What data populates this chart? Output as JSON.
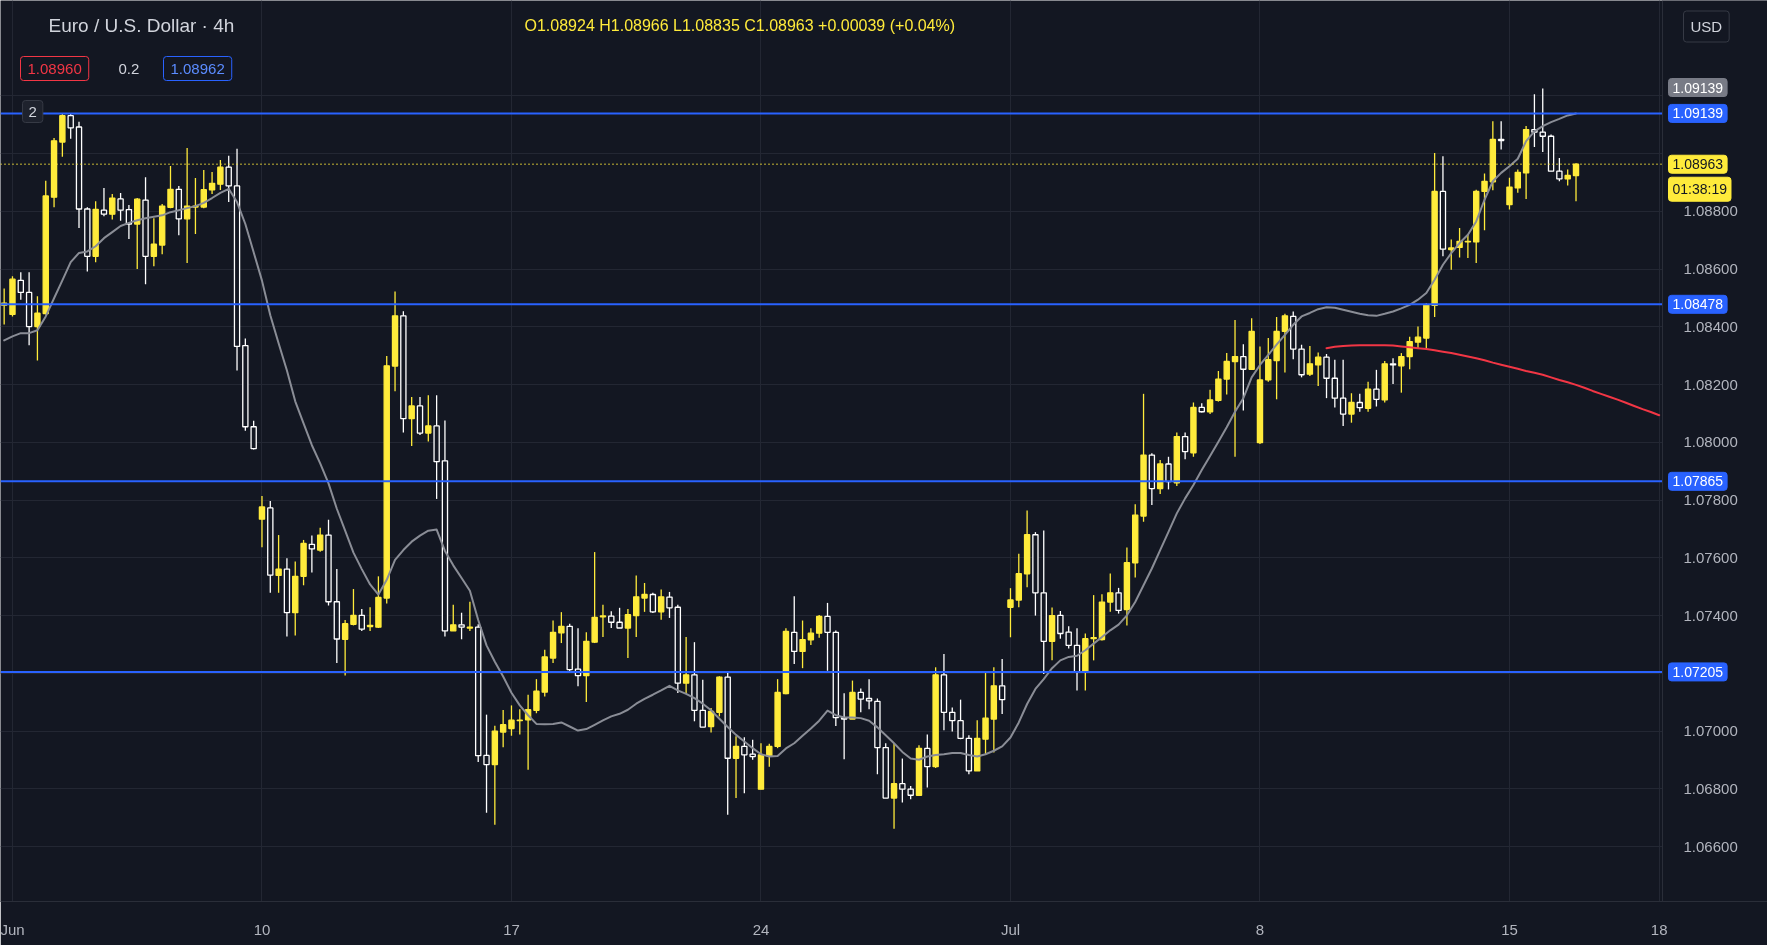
{
  "chart_data": {
    "type": "candlestick",
    "title": "Euro / U.S. Dollar · 4h",
    "subtitle": "O1.08924 H1.08966 L1.08835 C1.08963 +0.00039 (+0.04%)",
    "categories": [
      null,
      "Jun",
      null,
      null,
      null,
      null,
      null,
      null,
      null,
      null,
      null,
      null,
      null,
      null,
      null,
      null,
      null,
      null,
      null,
      null,
      null,
      null,
      null,
      null,
      null,
      null,
      null,
      null,
      null,
      null,
      null,
      "10",
      null,
      null,
      null,
      null,
      null,
      null,
      null,
      null,
      null,
      null,
      null,
      null,
      null,
      null,
      null,
      null,
      null,
      null,
      null,
      null,
      null,
      null,
      null,
      null,
      null,
      null,
      null,
      null,
      null,
      "17",
      null,
      null,
      null,
      null,
      null,
      null,
      null,
      null,
      null,
      null,
      null,
      null,
      null,
      null,
      null,
      null,
      null,
      null,
      null,
      null,
      null,
      null,
      null,
      null,
      null,
      null,
      null,
      null,
      null,
      "24",
      null,
      null,
      null,
      null,
      null,
      null,
      null,
      null,
      null,
      null,
      null,
      null,
      null,
      null,
      null,
      null,
      null,
      null,
      null,
      null,
      null,
      null,
      null,
      null,
      null,
      null,
      null,
      null,
      null,
      "Jul",
      null,
      null,
      null,
      null,
      null,
      null,
      null,
      null,
      null,
      null,
      null,
      null,
      null,
      null,
      null,
      null,
      null,
      null,
      null,
      null,
      null,
      null,
      null,
      null,
      null,
      null,
      null,
      null,
      null,
      "8",
      null,
      null,
      null,
      null,
      null,
      null,
      null,
      null,
      null,
      null,
      null,
      null,
      null,
      null,
      null,
      null,
      null,
      null,
      null,
      null,
      null,
      null,
      null,
      null,
      null,
      null,
      null,
      null,
      null,
      "15",
      null,
      null,
      null,
      null,
      null,
      null,
      null,
      null,
      null,
      null,
      null,
      null,
      null,
      null,
      null,
      null,
      null,
      "18"
    ],
    "ohlc": [
      [
        1.08475,
        1.08533,
        1.08408,
        1.08482
      ],
      [
        1.08443,
        1.08575,
        1.08436,
        1.08565
      ],
      [
        1.08561,
        1.08589,
        1.08494,
        1.08519
      ],
      [
        1.08519,
        1.08589,
        1.08336,
        1.08401
      ],
      [
        1.08401,
        1.08506,
        1.08283,
        1.08447
      ],
      [
        1.08446,
        1.08906,
        1.08443,
        1.08853
      ],
      [
        1.08849,
        1.09054,
        1.08814,
        1.09044
      ],
      [
        1.0904,
        1.09138,
        1.08989,
        1.09131
      ],
      [
        1.09131,
        1.09139,
        1.09051,
        1.09089
      ],
      [
        1.09092,
        1.0911,
        1.08742,
        1.08808
      ],
      [
        1.08808,
        1.08814,
        1.08592,
        1.08644
      ],
      [
        1.08644,
        1.08835,
        1.08624,
        1.08807
      ],
      [
        1.08804,
        1.08881,
        1.08783,
        1.0879
      ],
      [
        1.0879,
        1.0886,
        1.08772,
        1.08846
      ],
      [
        1.08843,
        1.08863,
        1.08767,
        1.08804
      ],
      [
        1.08806,
        1.08822,
        1.08704,
        1.08756
      ],
      [
        1.08756,
        1.08846,
        1.086,
        1.08842
      ],
      [
        1.08839,
        1.08918,
        1.08547,
        1.08644
      ],
      [
        1.08644,
        1.08776,
        1.0861,
        1.08686
      ],
      [
        1.08683,
        1.08825,
        1.08651,
        1.08818
      ],
      [
        1.08814,
        1.08957,
        1.08811,
        1.08876
      ],
      [
        1.08876,
        1.08888,
        1.08717,
        1.08774
      ],
      [
        1.08774,
        1.09019,
        1.08621,
        1.08818
      ],
      [
        1.08815,
        1.08915,
        1.08721,
        1.08818
      ],
      [
        1.08815,
        1.08943,
        1.08811,
        1.08875
      ],
      [
        1.08874,
        1.08936,
        1.0886,
        1.08897
      ],
      [
        1.08894,
        1.08978,
        1.08874,
        1.08953
      ],
      [
        1.08953,
        1.08992,
        1.08832,
        1.08888
      ],
      [
        1.08888,
        1.09017,
        1.08249,
        1.08332
      ],
      [
        1.08335,
        1.0836,
        1.0804,
        1.08054
      ],
      [
        1.08054,
        1.08075,
        1.07975,
        1.07978
      ],
      [
        1.07734,
        1.07814,
        1.07637,
        1.07776
      ],
      [
        1.07773,
        1.07797,
        1.07479,
        1.0754
      ],
      [
        1.07539,
        1.07679,
        1.07479,
        1.07561
      ],
      [
        1.07561,
        1.07599,
        1.07328,
        1.0741
      ],
      [
        1.0741,
        1.07587,
        1.07331,
        1.07536
      ],
      [
        1.07536,
        1.07662,
        1.07505,
        1.0765
      ],
      [
        1.07647,
        1.07677,
        1.07549,
        1.07631
      ],
      [
        1.07627,
        1.07704,
        1.07621,
        1.07679
      ],
      [
        1.07679,
        1.07732,
        1.07435,
        1.07448
      ],
      [
        1.07448,
        1.07561,
        1.07236,
        1.07319
      ],
      [
        1.07318,
        1.07385,
        1.07193,
        1.07372
      ],
      [
        1.0737,
        1.07492,
        1.07366,
        1.07401
      ],
      [
        1.07401,
        1.07423,
        1.07347,
        1.07353
      ],
      [
        1.07362,
        1.07429,
        1.07347,
        1.07366
      ],
      [
        1.0736,
        1.07536,
        1.07357,
        1.07463
      ],
      [
        1.07461,
        1.08299,
        1.07442,
        1.08265
      ],
      [
        1.08264,
        1.08522,
        1.08177,
        1.08438
      ],
      [
        1.08438,
        1.08454,
        1.08034,
        1.08082
      ],
      [
        1.08082,
        1.08157,
        1.07987,
        1.08126
      ],
      [
        1.08126,
        1.08157,
        1.08025,
        1.08032
      ],
      [
        1.08032,
        1.08163,
        1.08003,
        1.08057
      ],
      [
        1.08057,
        1.08163,
        1.07804,
        1.07933
      ],
      [
        1.07936,
        1.08076,
        1.07328,
        1.07347
      ],
      [
        1.07347,
        1.07438,
        1.07347,
        1.07368
      ],
      [
        1.07368,
        1.0741,
        1.07318,
        1.0736
      ],
      [
        1.07357,
        1.07448,
        1.07347,
        1.0736
      ],
      [
        1.0736,
        1.0737,
        1.06893,
        1.06915
      ],
      [
        1.06916,
        1.07057,
        1.06717,
        1.06884
      ],
      [
        1.06884,
        1.07019,
        1.06676,
        1.07
      ],
      [
        1.06997,
        1.07073,
        1.06944,
        1.07022
      ],
      [
        1.07009,
        1.07089,
        1.06984,
        1.07038
      ],
      [
        1.07036,
        1.07076,
        1.06988,
        1.07038
      ],
      [
        1.07039,
        1.07126,
        1.06866,
        1.07074
      ],
      [
        1.07072,
        1.0718,
        1.07062,
        1.07138
      ],
      [
        1.07135,
        1.07282,
        1.0712,
        1.07257
      ],
      [
        1.07253,
        1.07383,
        1.07236,
        1.07342
      ],
      [
        1.0734,
        1.07412,
        1.07305,
        1.07363
      ],
      [
        1.07363,
        1.07372,
        1.07207,
        1.07213
      ],
      [
        1.07215,
        1.07356,
        1.07155,
        1.07192
      ],
      [
        1.07192,
        1.07342,
        1.07101,
        1.07311
      ],
      [
        1.07308,
        1.0762,
        1.07305,
        1.07394
      ],
      [
        1.07396,
        1.07438,
        1.07326,
        1.07399
      ],
      [
        1.07398,
        1.07415,
        1.07357,
        1.07377
      ],
      [
        1.07377,
        1.07427,
        1.07357,
        1.07357
      ],
      [
        1.07357,
        1.07423,
        1.07253,
        1.07403
      ],
      [
        1.074,
        1.07539,
        1.07326,
        1.07465
      ],
      [
        1.07461,
        1.07513,
        1.07413,
        1.07473
      ],
      [
        1.07473,
        1.07479,
        1.07409,
        1.07413
      ],
      [
        1.07413,
        1.0749,
        1.07386,
        1.07465
      ],
      [
        1.07464,
        1.07482,
        1.07392,
        1.07427
      ],
      [
        1.07429,
        1.07438,
        1.07132,
        1.07166
      ],
      [
        1.07166,
        1.07326,
        1.07129,
        1.07195
      ],
      [
        1.07195,
        1.07308,
        1.07034,
        1.07072
      ],
      [
        1.07072,
        1.07178,
        1.07014,
        1.07014
      ],
      [
        1.07016,
        1.0708,
        1.06995,
        1.07068
      ],
      [
        1.07065,
        1.0719,
        1.07051,
        1.07187
      ],
      [
        1.07187,
        1.07207,
        1.0671,
        1.06906
      ],
      [
        1.06906,
        1.06982,
        1.06768,
        1.06947
      ],
      [
        1.06947,
        1.06979,
        1.06785,
        1.06918
      ],
      [
        1.0692,
        1.0697,
        1.06901,
        1.06912
      ],
      [
        1.06799,
        1.06958,
        1.06799,
        1.06918
      ],
      [
        1.06914,
        1.06956,
        1.06877,
        1.06947
      ],
      [
        1.06947,
        1.0718,
        1.06941,
        1.07134
      ],
      [
        1.0713,
        1.07356,
        1.07128,
        1.07345
      ],
      [
        1.07342,
        1.07467,
        1.07232,
        1.07276
      ],
      [
        1.07276,
        1.07383,
        1.07218,
        1.07317
      ],
      [
        1.07316,
        1.07356,
        1.07298,
        1.07339
      ],
      [
        1.07339,
        1.07402,
        1.07323,
        1.07397
      ],
      [
        1.07397,
        1.07444,
        1.07209,
        1.07342
      ],
      [
        1.07342,
        1.07348,
        1.07018,
        1.07047
      ],
      [
        1.07047,
        1.07131,
        1.06903,
        1.07042
      ],
      [
        1.07042,
        1.07175,
        1.07042,
        1.07134
      ],
      [
        1.07134,
        1.07148,
        1.07065,
        1.07111
      ],
      [
        1.07113,
        1.0718,
        1.07076,
        1.07105
      ],
      [
        1.07103,
        1.07113,
        1.06851,
        1.06943
      ],
      [
        1.06943,
        1.06958,
        1.06768,
        1.06768
      ],
      [
        1.06768,
        1.06958,
        1.06662,
        1.06818
      ],
      [
        1.06818,
        1.06905,
        1.06753,
        1.06799
      ],
      [
        1.06799,
        1.0681,
        1.06764,
        1.06778
      ],
      [
        1.06778,
        1.06951,
        1.06776,
        1.0694
      ],
      [
        1.0694,
        1.06988,
        1.06805,
        1.06877
      ],
      [
        1.06877,
        1.07221,
        1.06872,
        1.07195
      ],
      [
        1.07195,
        1.07267,
        1.07003,
        1.07065
      ],
      [
        1.07065,
        1.07082,
        1.06999,
        1.07036
      ],
      [
        1.07036,
        1.07109,
        1.06972,
        1.06975
      ],
      [
        1.06975,
        1.06986,
        1.06851,
        1.06862
      ],
      [
        1.06862,
        1.07038,
        1.06862,
        1.06975
      ],
      [
        1.06972,
        1.07201,
        1.0692,
        1.07045
      ],
      [
        1.07042,
        1.07221,
        1.06926,
        1.07157
      ],
      [
        1.07157,
        1.0725,
        1.07059,
        1.07109
      ],
      [
        1.07429,
        1.07495,
        1.07325,
        1.07454
      ],
      [
        1.07454,
        1.07614,
        1.07429,
        1.07545
      ],
      [
        1.07545,
        1.07764,
        1.07498,
        1.0768
      ],
      [
        1.0768,
        1.07689,
        1.074,
        1.07479
      ],
      [
        1.07479,
        1.07695,
        1.07198,
        1.07311
      ],
      [
        1.07311,
        1.07428,
        1.07245,
        1.074
      ],
      [
        1.07401,
        1.07416,
        1.0732,
        1.07338
      ],
      [
        1.07343,
        1.07363,
        1.07286,
        1.07297
      ],
      [
        1.07297,
        1.07356,
        1.07141,
        1.07205
      ],
      [
        1.07205,
        1.07338,
        1.07141,
        1.0732
      ],
      [
        1.0732,
        1.07471,
        1.07245,
        1.07324
      ],
      [
        1.07317,
        1.07474,
        1.07314,
        1.07447
      ],
      [
        1.07447,
        1.07546,
        1.07413,
        1.07479
      ],
      [
        1.07479,
        1.07496,
        1.07407,
        1.07418
      ],
      [
        1.07421,
        1.07636,
        1.07366,
        1.07583
      ],
      [
        1.07583,
        1.07786,
        1.07532,
        1.07748
      ],
      [
        1.07745,
        1.08168,
        1.07725,
        1.07956
      ],
      [
        1.07956,
        1.07962,
        1.07783,
        1.0784
      ],
      [
        1.0784,
        1.07939,
        1.07821,
        1.07925
      ],
      [
        1.07925,
        1.0795,
        1.07837,
        1.07864
      ],
      [
        1.0786,
        1.08034,
        1.07849,
        1.0802
      ],
      [
        1.0802,
        1.08034,
        1.07941,
        1.07968
      ],
      [
        1.07964,
        1.08138,
        1.0795,
        1.08121
      ],
      [
        1.08121,
        1.08135,
        1.08103,
        1.08106
      ],
      [
        1.08106,
        1.08182,
        1.08098,
        1.08147
      ],
      [
        1.08145,
        1.08247,
        1.08141,
        1.08219
      ],
      [
        1.08219,
        1.08309,
        1.08166,
        1.0828
      ],
      [
        1.0828,
        1.08424,
        1.0795,
        1.08297
      ],
      [
        1.08297,
        1.0834,
        1.0811,
        1.08253
      ],
      [
        1.08253,
        1.0843,
        1.08251,
        1.08384
      ],
      [
        1.07999,
        1.08332,
        1.07994,
        1.08216
      ],
      [
        1.08216,
        1.08361,
        1.0821,
        1.08286
      ],
      [
        1.08283,
        1.08434,
        1.08149,
        1.08384
      ],
      [
        1.08384,
        1.08445,
        1.08242,
        1.08438
      ],
      [
        1.08436,
        1.08453,
        1.08288,
        1.08323
      ],
      [
        1.08323,
        1.08338,
        1.08225,
        1.08234
      ],
      [
        1.08236,
        1.08334,
        1.0823,
        1.08272
      ],
      [
        1.08268,
        1.08311,
        1.08195,
        1.08295
      ],
      [
        1.08295,
        1.08306,
        1.08153,
        1.08222
      ],
      [
        1.08222,
        1.08286,
        1.08121,
        1.08153
      ],
      [
        1.08153,
        1.08286,
        1.08057,
        1.08098
      ],
      [
        1.08098,
        1.0817,
        1.08068,
        1.08138
      ],
      [
        1.08138,
        1.08168,
        1.08106,
        1.0812
      ],
      [
        1.08118,
        1.0821,
        1.08106,
        1.08184
      ],
      [
        1.08184,
        1.08251,
        1.08124,
        1.08149
      ],
      [
        1.08147,
        1.08282,
        1.08138,
        1.08272
      ],
      [
        1.08272,
        1.08291,
        1.08202,
        1.08268
      ],
      [
        1.08265,
        1.08309,
        1.08172,
        1.08297
      ],
      [
        1.08297,
        1.08366,
        1.08253,
        1.08349
      ],
      [
        1.08347,
        1.08401,
        1.08326,
        1.08364
      ],
      [
        1.08361,
        1.08482,
        1.08326,
        1.08476
      ],
      [
        1.08474,
        1.09002,
        1.08434,
        1.08869
      ],
      [
        1.08869,
        1.08991,
        1.08644,
        1.08669
      ],
      [
        1.08667,
        1.08702,
        1.08598,
        1.08673
      ],
      [
        1.08675,
        1.08742,
        1.0864,
        1.08696
      ],
      [
        1.08694,
        1.08719,
        1.08638,
        1.08696
      ],
      [
        1.08694,
        1.08875,
        1.08621,
        1.08869
      ],
      [
        1.08869,
        1.08931,
        1.08734,
        1.08904
      ],
      [
        1.08902,
        1.09112,
        1.08873,
        1.09049
      ],
      [
        1.09049,
        1.09112,
        1.09014,
        1.09045
      ],
      [
        1.08823,
        1.08916,
        1.08806,
        1.08884
      ],
      [
        1.08881,
        1.08945,
        1.08864,
        1.08935
      ],
      [
        1.08933,
        1.09095,
        1.08843,
        1.09083
      ],
      [
        1.09083,
        1.09205,
        1.09023,
        1.09074
      ],
      [
        1.09074,
        1.09225,
        1.09005,
        1.0906
      ],
      [
        1.0906,
        1.09066,
        1.08939,
        1.08939
      ],
      [
        1.08939,
        1.08985,
        1.08904,
        1.08912
      ],
      [
        1.08912,
        1.08945,
        1.08889,
        1.08924
      ],
      [
        1.08924,
        1.08966,
        1.08835,
        1.08963
      ],
      null,
      null,
      null,
      null,
      null,
      null,
      null,
      null,
      null,
      null
    ],
    "colors": [
      "#ffeb3b",
      "#ffeb3b",
      "#ffffff",
      "#ffffff",
      "#ffeb3b",
      "#ffeb3b",
      "#ffeb3b",
      "#ffeb3b",
      "#ffffff",
      "#ffffff",
      "#ffffff",
      "#ffeb3b",
      "#ffffff",
      "#ffeb3b",
      "#ffffff",
      "#ffffff",
      "#ffeb3b",
      "#ffffff",
      "#ffeb3b",
      "#ffeb3b",
      "#ffeb3b",
      "#ffffff",
      "#ffeb3b",
      "#ffeb3b",
      "#ffeb3b",
      "#ffeb3b",
      "#ffeb3b",
      "#ffffff",
      "#ffffff",
      "#ffffff",
      "#ffffff",
      "#ffeb3b",
      "#ffffff",
      "#ffeb3b",
      "#ffffff",
      "#ffeb3b",
      "#ffeb3b",
      "#ffffff",
      "#ffeb3b",
      "#ffffff",
      "#ffffff",
      "#ffeb3b",
      "#ffeb3b",
      "#ffffff",
      "#ffeb3b",
      "#ffeb3b",
      "#ffeb3b",
      "#ffeb3b",
      "#ffffff",
      "#ffeb3b",
      "#ffffff",
      "#ffeb3b",
      "#ffffff",
      "#ffffff",
      "#ffeb3b",
      "#ffffff",
      "#ffeb3b",
      "#ffffff",
      "#ffffff",
      "#ffeb3b",
      "#ffeb3b",
      "#ffeb3b",
      "#ffeb3b",
      "#ffeb3b",
      "#ffeb3b",
      "#ffeb3b",
      "#ffeb3b",
      "#ffeb3b",
      "#ffffff",
      "#ffffff",
      "#ffeb3b",
      "#ffeb3b",
      "#ffeb3b",
      "#ffffff",
      "#ffffff",
      "#ffeb3b",
      "#ffeb3b",
      "#ffeb3b",
      "#ffffff",
      "#ffeb3b",
      "#ffffff",
      "#ffffff",
      "#ffeb3b",
      "#ffffff",
      "#ffffff",
      "#ffeb3b",
      "#ffeb3b",
      "#ffffff",
      "#ffeb3b",
      "#ffffff",
      "#ffffff",
      "#ffeb3b",
      "#ffeb3b",
      "#ffeb3b",
      "#ffeb3b",
      "#ffffff",
      "#ffeb3b",
      "#ffeb3b",
      "#ffeb3b",
      "#ffffff",
      "#ffffff",
      "#ffffff",
      "#ffeb3b",
      "#ffffff",
      "#ffffff",
      "#ffffff",
      "#ffffff",
      "#ffeb3b",
      "#ffffff",
      "#ffffff",
      "#ffeb3b",
      "#ffffff",
      "#ffeb3b",
      "#ffffff",
      "#ffffff",
      "#ffffff",
      "#ffffff",
      "#ffeb3b",
      "#ffeb3b",
      "#ffeb3b",
      "#ffffff",
      "#ffeb3b",
      "#ffeb3b",
      "#ffeb3b",
      "#ffffff",
      "#ffffff",
      "#ffeb3b",
      "#ffffff",
      "#ffffff",
      "#ffffff",
      "#ffeb3b",
      "#ffeb3b",
      "#ffeb3b",
      "#ffeb3b",
      "#ffffff",
      "#ffeb3b",
      "#ffeb3b",
      "#ffeb3b",
      "#ffffff",
      "#ffeb3b",
      "#ffffff",
      "#ffeb3b",
      "#ffffff",
      "#ffeb3b",
      "#ffffff",
      "#ffeb3b",
      "#ffeb3b",
      "#ffeb3b",
      "#ffeb3b",
      "#ffffff",
      "#ffeb3b",
      "#ffeb3b",
      "#ffeb3b",
      "#ffeb3b",
      "#ffeb3b",
      "#ffffff",
      "#ffffff",
      "#ffeb3b",
      "#ffeb3b",
      "#ffffff",
      "#ffffff",
      "#ffffff",
      "#ffeb3b",
      "#ffffff",
      "#ffeb3b",
      "#ffffff",
      "#ffeb3b",
      "#ffffff",
      "#ffeb3b",
      "#ffeb3b",
      "#ffeb3b",
      "#ffeb3b",
      "#ffeb3b",
      "#ffffff",
      "#ffeb3b",
      "#ffeb3b",
      "#ffeb3b",
      "#ffeb3b",
      "#ffeb3b",
      "#ffeb3b",
      "#ffffff",
      "#ffeb3b",
      "#ffeb3b",
      "#ffeb3b",
      "#ffffff",
      "#ffffff",
      "#ffffff",
      "#ffffff",
      "#ffeb3b",
      "#ffeb3b",
      null,
      null,
      null,
      null,
      null,
      null,
      null,
      null,
      null,
      null
    ],
    "series": [
      {
        "type": "line",
        "color": "#8a8d96",
        "values": [
          1.08353,
          1.08367,
          1.08378,
          1.08378,
          1.08388,
          1.08436,
          1.08499,
          1.08561,
          1.08624,
          1.08656,
          1.08661,
          1.08679,
          1.08707,
          1.08728,
          1.08749,
          1.0876,
          1.08769,
          1.08776,
          1.08781,
          1.08786,
          1.08797,
          1.08804,
          1.08811,
          1.08818,
          1.08829,
          1.08846,
          1.08864,
          1.08878,
          1.08832,
          1.08756,
          1.08658,
          1.0856,
          1.0844,
          1.08343,
          1.08249,
          1.08142,
          1.08066,
          1.0799,
          1.07927,
          1.07858,
          1.0777,
          1.07694,
          1.07618,
          1.07561,
          1.07508,
          1.07473,
          1.07524,
          1.07593,
          1.07627,
          1.07656,
          1.07677,
          1.07694,
          1.07698,
          1.07624,
          1.07574,
          1.0753,
          1.07486,
          1.07385,
          1.07297,
          1.0724,
          1.07189,
          1.07133,
          1.07089,
          1.07055,
          1.07025,
          1.07024,
          1.07025,
          1.0703,
          1.07016,
          1.07002,
          1.07007,
          1.07022,
          1.07037,
          1.07051,
          1.0706,
          1.07074,
          1.07095,
          1.07112,
          1.07126,
          1.07141,
          1.07157,
          1.07141,
          1.07129,
          1.07114,
          1.07095,
          1.07072,
          1.07043,
          1.07014,
          1.06987,
          1.06964,
          1.06941,
          1.0692,
          1.06912,
          1.06914,
          1.0694,
          1.06958,
          1.06984,
          1.07009,
          1.07036,
          1.07071,
          1.07055,
          1.07047,
          1.07047,
          1.07045,
          1.07036,
          1.07013,
          1.06986,
          1.06958,
          1.06928,
          1.06905,
          1.06901,
          1.06912,
          1.06917,
          1.0692,
          1.06924,
          1.06924,
          1.06917,
          1.06912,
          1.0692,
          1.06932,
          1.06947,
          1.06978,
          1.0703,
          1.07094,
          1.07146,
          1.0718,
          1.07218,
          1.07245,
          1.07257,
          1.07261,
          1.0728,
          1.07303,
          1.07326,
          1.07349,
          1.07369,
          1.07401,
          1.07447,
          1.07505,
          1.07563,
          1.07627,
          1.0769,
          1.07754,
          1.07806,
          1.07852,
          1.07904,
          1.07953,
          1.08002,
          1.08052,
          1.08106,
          1.08153,
          1.08225,
          1.08268,
          1.08303,
          1.08338,
          1.08372,
          1.08407,
          1.08436,
          1.08448,
          1.08461,
          1.08468,
          1.08466,
          1.08459,
          1.08452,
          1.08445,
          1.0844,
          1.08438,
          1.08445,
          1.08453,
          1.08464,
          1.08476,
          1.08494,
          1.08517,
          1.08563,
          1.08615,
          1.08655,
          1.0869,
          1.08719,
          1.08765,
          1.0884,
          1.08904,
          1.08933,
          1.08956,
          1.08982,
          1.09043,
          1.09077,
          1.09095,
          1.09109,
          1.0912,
          1.09132,
          1.09139,
          null,
          null,
          null,
          null,
          null,
          null,
          null,
          null,
          null,
          null
        ]
      },
      {
        "type": "line",
        "color": "#f23645",
        "values": [
          null,
          null,
          null,
          null,
          null,
          null,
          null,
          null,
          null,
          null,
          null,
          null,
          null,
          null,
          null,
          null,
          null,
          null,
          null,
          null,
          null,
          null,
          null,
          null,
          null,
          null,
          null,
          null,
          null,
          null,
          null,
          null,
          null,
          null,
          null,
          null,
          null,
          null,
          null,
          null,
          null,
          null,
          null,
          null,
          null,
          null,
          null,
          null,
          null,
          null,
          null,
          null,
          null,
          null,
          null,
          null,
          null,
          null,
          null,
          null,
          null,
          null,
          null,
          null,
          null,
          null,
          null,
          null,
          null,
          null,
          null,
          null,
          null,
          null,
          null,
          null,
          null,
          null,
          null,
          null,
          null,
          null,
          null,
          null,
          null,
          null,
          null,
          null,
          null,
          null,
          null,
          null,
          null,
          null,
          null,
          null,
          null,
          null,
          null,
          null,
          null,
          null,
          null,
          null,
          null,
          null,
          null,
          null,
          null,
          null,
          null,
          null,
          null,
          null,
          null,
          null,
          null,
          null,
          null,
          null,
          null,
          null,
          null,
          null,
          null,
          null,
          null,
          null,
          null,
          null,
          null,
          null,
          null,
          null,
          null,
          null,
          null,
          null,
          null,
          null,
          null,
          null,
          null,
          null,
          null,
          null,
          null,
          null,
          null,
          null,
          null,
          null,
          null,
          null,
          null,
          null,
          null,
          null,
          null,
          1.08326,
          1.08331,
          1.08334,
          1.08335,
          1.08336,
          1.08336,
          1.08336,
          1.08336,
          1.08335,
          1.08332,
          1.08329,
          1.08326,
          1.08323,
          1.08319,
          1.08314,
          1.08309,
          1.08303,
          1.08297,
          1.08291,
          1.08284,
          1.08276,
          1.08269,
          1.08262,
          1.08255,
          1.08247,
          1.08241,
          1.08234,
          1.08225,
          1.08216,
          1.08208,
          1.08199,
          1.08189,
          1.08178,
          1.08168,
          1.08158,
          1.08148,
          1.08137,
          1.08126,
          1.08115,
          1.08105,
          1.08094
        ]
      }
    ],
    "ylim": [
      1.0641,
      1.0953
    ],
    "yticks": [
      {
        "value": 1.066,
        "label": "1.06600"
      },
      {
        "value": 1.068,
        "label": "1.06800"
      },
      {
        "value": 1.07,
        "label": "1.07000"
      },
      {
        "value": 1.072,
        "label": null
      },
      {
        "value": 1.074,
        "label": "1.07400"
      },
      {
        "value": 1.076,
        "label": "1.07600"
      },
      {
        "value": 1.078,
        "label": "1.07800"
      },
      {
        "value": 1.08,
        "label": "1.08000"
      },
      {
        "value": 1.082,
        "label": "1.08200"
      },
      {
        "value": 1.084,
        "label": "1.08400"
      },
      {
        "value": 1.086,
        "label": "1.08600"
      },
      {
        "value": 1.088,
        "label": "1.08800"
      },
      {
        "value": 1.09,
        "label": null
      },
      {
        "value": 1.092,
        "label": null
      }
    ],
    "ref_lines": [
      {
        "axis": "y",
        "value": 1.09139,
        "label": "1.09139",
        "color": "#2962ff"
      },
      {
        "axis": "y",
        "value": 1.08963,
        "label": "1.08963\n01:38:19",
        "color": "#ffeb3b",
        "line_style": "dotted"
      },
      {
        "axis": "y",
        "value": 1.08478,
        "label": "1.08478",
        "color": "#2962ff"
      },
      {
        "axis": "y",
        "value": 1.07865,
        "label": "1.07865",
        "color": "#2962ff"
      },
      {
        "axis": "y",
        "value": 1.07205,
        "label": "1.07205",
        "color": "#2962ff"
      }
    ],
    "annotations": [
      "1.08960",
      "0.2",
      "1.08962",
      "2",
      "USD",
      "1.09139"
    ],
    "grid": true
  }
}
